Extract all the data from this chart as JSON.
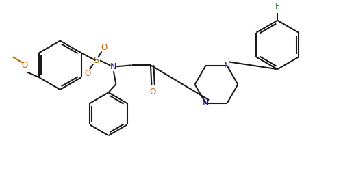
{
  "bg_color": "#ffffff",
  "line_color": "#1a1a1a",
  "atom_color_N": "#1414aa",
  "atom_color_O": "#cc6600",
  "atom_color_F": "#228844",
  "atom_color_S": "#8b7500",
  "fig_width": 4.98,
  "fig_height": 2.72,
  "dpi": 100,
  "xlim": [
    0,
    10
  ],
  "ylim": [
    0,
    5.4
  ]
}
